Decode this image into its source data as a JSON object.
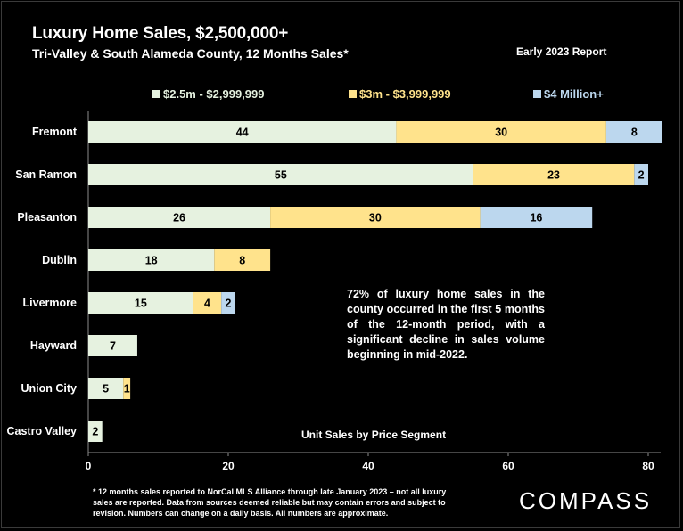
{
  "header": {
    "title": "Luxury Home Sales, $2,500,000+",
    "subtitle": "Tri-Valley & South Alameda County, 12 Months Sales*",
    "report": "Early 2023 Report"
  },
  "annotation": "72% of luxury home sales in the county occurred in the first 5 months of the 12-month period, with a significant decline in sales volume beginning in mid-2022.",
  "axis_note": "Unit Sales by Price Segment",
  "footnote": "* 12 months sales reported to NorCal MLS Alliance through late January 2023 – not all luxury sales are reported. Data from sources deemed reliable but may contain errors and subject to revision. Numbers can change on a daily basis. All numbers are approximate.",
  "logo": "COMPASS",
  "colors": {
    "s1": "#e6f2e0",
    "s2": "#ffe38c",
    "s3": "#bcd7ee",
    "background": "#000000",
    "text": "#ffffff"
  },
  "chart_data": {
    "type": "bar",
    "orientation": "horizontal",
    "stacked": true,
    "categories": [
      "Fremont",
      "San Ramon",
      "Pleasanton",
      "Dublin",
      "Livermore",
      "Hayward",
      "Union City",
      "Castro Valley"
    ],
    "series": [
      {
        "name": "$2.5m - $2,999,999",
        "values": [
          44,
          55,
          26,
          18,
          15,
          7,
          5,
          2
        ]
      },
      {
        "name": "$3m - $3,999,999",
        "values": [
          30,
          23,
          30,
          8,
          4,
          0,
          1,
          0
        ]
      },
      {
        "name": "$4 Million+",
        "values": [
          8,
          2,
          16,
          0,
          2,
          0,
          0,
          0
        ]
      }
    ],
    "xlim": [
      0,
      80
    ],
    "xticks": [
      0,
      20,
      40,
      60,
      80
    ],
    "legend_position": "top",
    "grid": false
  }
}
